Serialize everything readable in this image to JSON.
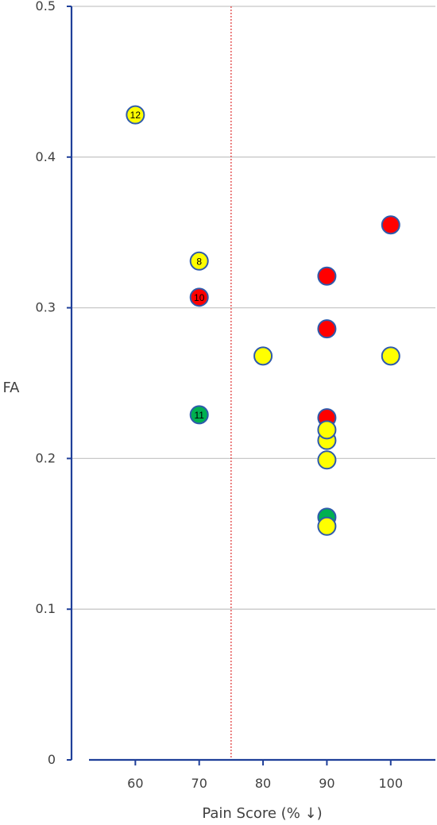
{
  "chart_data": {
    "type": "scatter",
    "title": "",
    "xlabel": "Pain Score (% ↓)",
    "ylabel": "FA",
    "xlim": [
      50,
      107
    ],
    "ylim": [
      0,
      0.5
    ],
    "x_ticks": [
      "60",
      "70",
      "80",
      "90",
      "100"
    ],
    "y_ticks": [
      "0",
      "0.1",
      "0.2",
      "0.3",
      "0.4",
      "0.5"
    ],
    "grid": "horizontal",
    "threshold_line_x": 75,
    "colors": {
      "yellow": "#ffff00",
      "red": "#ff0000",
      "green": "#00b050",
      "marker_edge": "#2e5aac",
      "axis": "#1f3f99",
      "grid": "#c8c8c8",
      "threshold": "#e03030"
    },
    "points": [
      {
        "x": 60,
        "y": 0.428,
        "color": "yellow",
        "label": "12"
      },
      {
        "x": 70,
        "y": 0.331,
        "color": "yellow",
        "label": "8"
      },
      {
        "x": 70,
        "y": 0.307,
        "color": "red",
        "label": "10"
      },
      {
        "x": 70,
        "y": 0.229,
        "color": "green",
        "label": "11"
      },
      {
        "x": 80,
        "y": 0.268,
        "color": "yellow",
        "label": ""
      },
      {
        "x": 90,
        "y": 0.321,
        "color": "red",
        "label": ""
      },
      {
        "x": 90,
        "y": 0.286,
        "color": "red",
        "label": ""
      },
      {
        "x": 90,
        "y": 0.227,
        "color": "red",
        "label": ""
      },
      {
        "x": 90,
        "y": 0.212,
        "color": "yellow",
        "label": ""
      },
      {
        "x": 90,
        "y": 0.219,
        "color": "yellow",
        "label": ""
      },
      {
        "x": 90,
        "y": 0.199,
        "color": "yellow",
        "label": ""
      },
      {
        "x": 90,
        "y": 0.161,
        "color": "green",
        "label": ""
      },
      {
        "x": 90,
        "y": 0.155,
        "color": "yellow",
        "label": ""
      },
      {
        "x": 100,
        "y": 0.355,
        "color": "red",
        "label": ""
      },
      {
        "x": 100,
        "y": 0.268,
        "color": "yellow",
        "label": ""
      }
    ]
  }
}
